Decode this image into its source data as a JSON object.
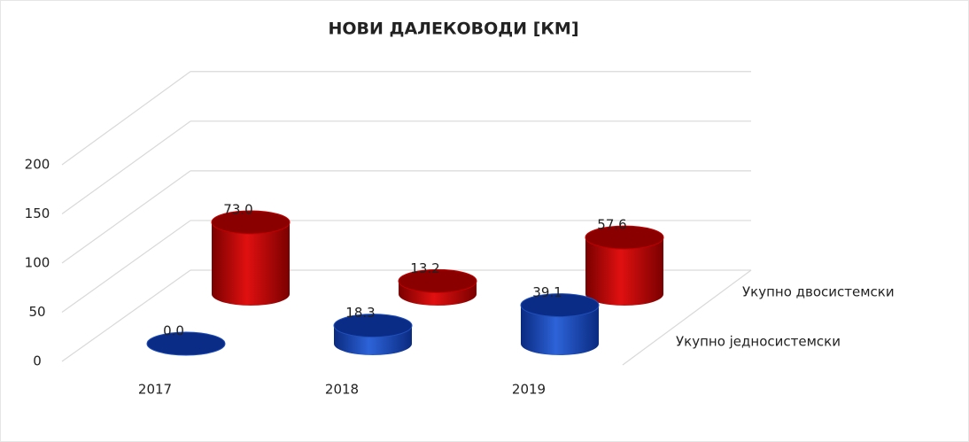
{
  "chart_data": {
    "type": "bar3d",
    "title": "НОВИ ДАЛЕКОВОДИ [КМ]",
    "categories": [
      "2017",
      "2018",
      "2019"
    ],
    "series": [
      {
        "name": "Укупно једносистемски",
        "color": "#1f4fb8",
        "values": [
          0,
          18.3,
          39.1
        ],
        "value_labels": [
          "0.0",
          "18.3",
          "39.1"
        ]
      },
      {
        "name": "Укупно двосистемски",
        "color": "#c00000",
        "values": [
          73,
          13.2,
          57.6
        ],
        "value_labels": [
          "73.0",
          "13.2",
          "57.6"
        ]
      }
    ],
    "ylim": [
      0,
      200
    ],
    "yticks": [
      0,
      50,
      100,
      150,
      200
    ],
    "grid": true
  }
}
